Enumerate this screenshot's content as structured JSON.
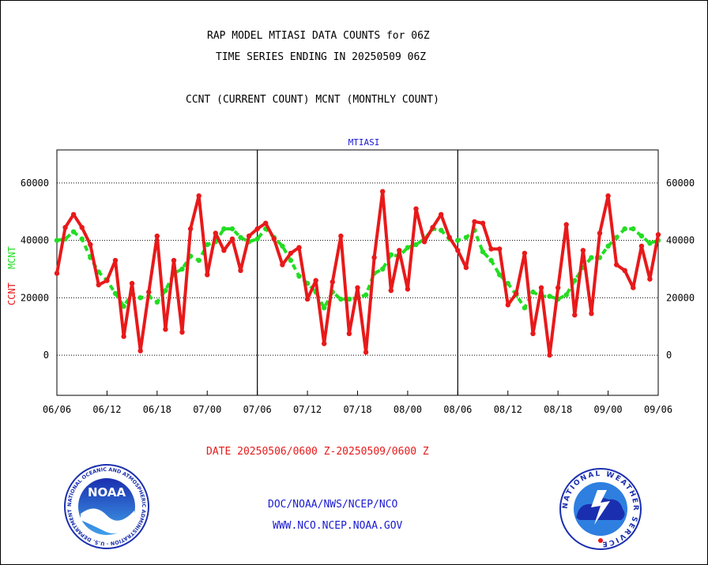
{
  "header": {
    "title_line1": "RAP MODEL MTIASI DATA COUNTS for 06Z",
    "title_line2": "TIME SERIES ENDING IN 20250509 06Z",
    "subtitle": "CCNT (CURRENT COUNT) MCNT (MONTHLY COUNT)"
  },
  "footer": {
    "date_range": "DATE 20250506/0600 Z-20250509/0600 Z",
    "org_line": "DOC/NOAA/NWS/NCEP/NCO",
    "url_line": "WWW.NCO.NCEP.NOAA.GOV"
  },
  "logos": {
    "noaa_center": "NOAA",
    "noaa_ring": "NATIONAL OCEANIC AND ATMOSPHERIC ADMINISTRATION · U.S. DEPARTMENT OF COMMERCE",
    "nws_ring": "NATIONAL WEATHER SERVICE"
  },
  "colors": {
    "ccnt": "#e8191a",
    "mcnt": "#22dd22",
    "text": "#000000",
    "blue": "#1a1ad0"
  },
  "chart_data": {
    "type": "line",
    "title": "MTIASI",
    "ylabel_left": "CCNT",
    "ylabel_right": "MCNT",
    "ylim": [
      -14000,
      71500
    ],
    "yticks": [
      0,
      20000,
      40000,
      60000
    ],
    "grid": true,
    "x_ticks": [
      "06/06",
      "06/12",
      "06/18",
      "07/00",
      "07/06",
      "07/12",
      "07/18",
      "08/00",
      "08/06",
      "08/12",
      "08/18",
      "09/00",
      "09/06"
    ],
    "x_range_hours": [
      0,
      72
    ],
    "panel_dividers_hours": [
      24,
      48
    ],
    "series": [
      {
        "name": "CCNT",
        "color": "#e8191a",
        "x_hours": [
          0,
          1,
          2,
          3,
          4,
          5,
          6,
          7,
          8,
          9,
          10,
          11,
          12,
          13,
          14,
          15,
          16,
          17,
          18,
          19,
          20,
          21,
          22,
          23,
          24,
          25,
          26,
          27,
          28,
          29,
          30,
          31,
          32,
          33,
          34,
          35,
          36,
          37,
          38,
          39,
          40,
          41,
          42,
          43,
          44,
          45,
          46,
          47,
          48,
          49,
          50,
          51,
          52,
          53,
          54,
          55,
          56,
          57,
          58,
          59,
          60,
          61,
          62,
          63,
          64,
          65,
          66,
          67,
          68,
          69,
          70,
          71,
          72
        ],
        "values": [
          28500,
          44500,
          49000,
          44500,
          38500,
          24500,
          26000,
          33000,
          6500,
          25000,
          1500,
          22000,
          41500,
          9000,
          33000,
          8000,
          44000,
          55500,
          28000,
          42500,
          36500,
          40500,
          29500,
          41500,
          44000,
          46000,
          40500,
          31500,
          35500,
          37500,
          19500,
          26000,
          4000,
          25500,
          41500,
          7500,
          23500,
          1000,
          34000,
          57000,
          22500,
          36500,
          23000,
          51000,
          39500,
          44500,
          49000,
          41000,
          36500,
          30500,
          46500,
          46000,
          37000,
          37000,
          17500,
          21500,
          35500,
          7500,
          23500,
          0,
          23500,
          45500,
          14000,
          36500,
          14500,
          42500,
          55500,
          31500,
          29500,
          23500,
          38000,
          26500,
          42000
        ]
      },
      {
        "name": "MCNT",
        "color": "#22dd22",
        "x_hours": [
          0,
          1,
          2,
          3,
          4,
          5,
          6,
          7,
          8,
          9,
          10,
          11,
          12,
          13,
          14,
          15,
          16,
          17,
          18,
          19,
          20,
          21,
          22,
          23,
          24,
          25,
          26,
          27,
          28,
          29,
          30,
          31,
          32,
          33,
          34,
          35,
          36,
          37,
          38,
          39,
          40,
          41,
          42,
          43,
          44,
          45,
          46,
          47,
          48,
          49,
          50,
          51,
          52,
          53,
          54,
          55,
          56,
          57,
          58,
          59,
          60,
          61,
          62,
          63,
          64,
          65,
          66,
          67,
          68,
          69,
          70,
          71,
          72
        ],
        "values": [
          40000,
          40500,
          43000,
          40500,
          34000,
          29000,
          26000,
          21500,
          17000,
          21500,
          20000,
          20500,
          18500,
          22500,
          28500,
          30000,
          34500,
          33000,
          38500,
          39500,
          44000,
          44000,
          41000,
          39500,
          40500,
          44000,
          41000,
          38000,
          33000,
          27500,
          25000,
          22000,
          16500,
          22000,
          19500,
          19500,
          20000,
          21000,
          28500,
          30000,
          35000,
          34500,
          37500,
          38500,
          40500,
          44000,
          43500,
          40500,
          40000,
          41000,
          43500,
          36000,
          33000,
          28000,
          25000,
          21000,
          16500,
          22000,
          20500,
          20500,
          19500,
          21000,
          26000,
          30500,
          34000,
          34000,
          38000,
          41000,
          44000,
          44000,
          41500,
          39000,
          40000
        ]
      }
    ]
  }
}
